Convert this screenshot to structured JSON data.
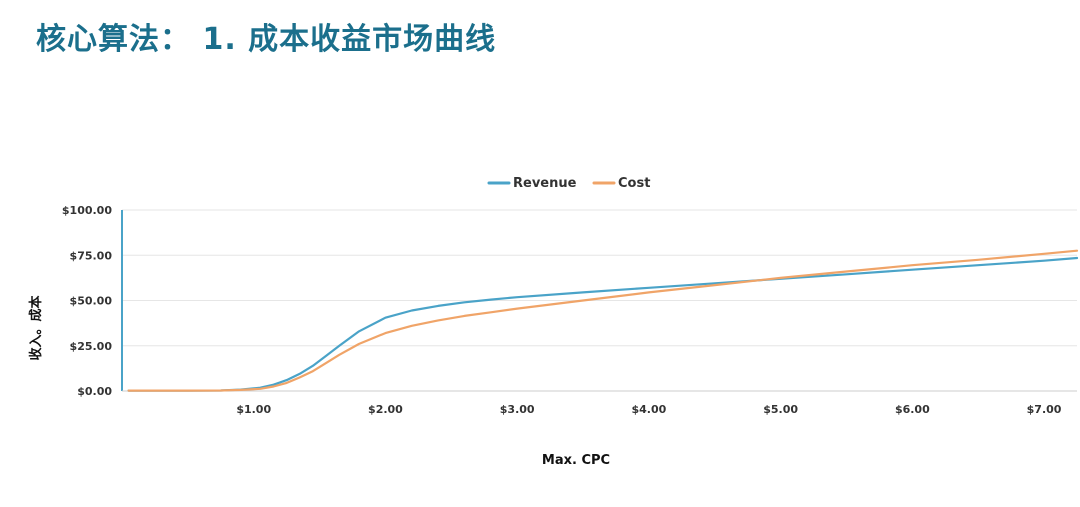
{
  "slide": {
    "title": "核心算法：  1. 成本收益市场曲线"
  },
  "chart_data": {
    "type": "line",
    "xlabel": "Max. CPC",
    "ylabel": "收入。成本",
    "xlim": [
      0,
      7.25
    ],
    "ylim": [
      0,
      100
    ],
    "x_ticks": [
      1,
      2,
      3,
      4,
      5,
      6,
      7
    ],
    "x_tick_labels": [
      "$1.00",
      "$2.00",
      "$3.00",
      "$4.00",
      "$5.00",
      "$6.00",
      "$7.00"
    ],
    "y_ticks": [
      0,
      25,
      50,
      75,
      100
    ],
    "y_tick_labels": [
      "$0.00",
      "$25.00",
      "$50.00",
      "$75.00",
      "$100.00"
    ],
    "grid": true,
    "legend_position": "top-center",
    "series": [
      {
        "name": "Revenue",
        "color": "#4aa3c8",
        "x": [
          0.05,
          0.5,
          0.75,
          0.9,
          1.05,
          1.15,
          1.25,
          1.35,
          1.45,
          1.55,
          1.65,
          1.8,
          2.0,
          2.2,
          2.4,
          2.6,
          2.8,
          3.0,
          3.5,
          4.0,
          4.5,
          5.0,
          5.5,
          6.0,
          6.5,
          7.0,
          7.25
        ],
        "y": [
          0.2,
          0.2,
          0.3,
          0.8,
          1.8,
          3.5,
          6,
          9.5,
          14,
          19.5,
          25,
          33,
          40.5,
          44.5,
          47,
          49,
          50.5,
          51.8,
          54.5,
          57,
          59.5,
          62,
          64.5,
          67,
          69.5,
          72,
          73.5
        ]
      },
      {
        "name": "Cost",
        "color": "#f0a468",
        "x": [
          0.05,
          0.5,
          0.75,
          0.9,
          1.05,
          1.15,
          1.25,
          1.35,
          1.45,
          1.55,
          1.65,
          1.8,
          2.0,
          2.2,
          2.4,
          2.6,
          2.8,
          3.0,
          3.5,
          4.0,
          4.5,
          5.0,
          5.5,
          6.0,
          6.5,
          7.0,
          7.25
        ],
        "y": [
          0.2,
          0.2,
          0.3,
          0.6,
          1.2,
          2.5,
          4.5,
          7.5,
          11,
          15.5,
          20,
          26,
          32,
          36,
          39,
          41.5,
          43.5,
          45.5,
          50,
          54.5,
          58.5,
          62.5,
          66,
          69.5,
          72.5,
          75.8,
          77.5
        ]
      }
    ]
  }
}
